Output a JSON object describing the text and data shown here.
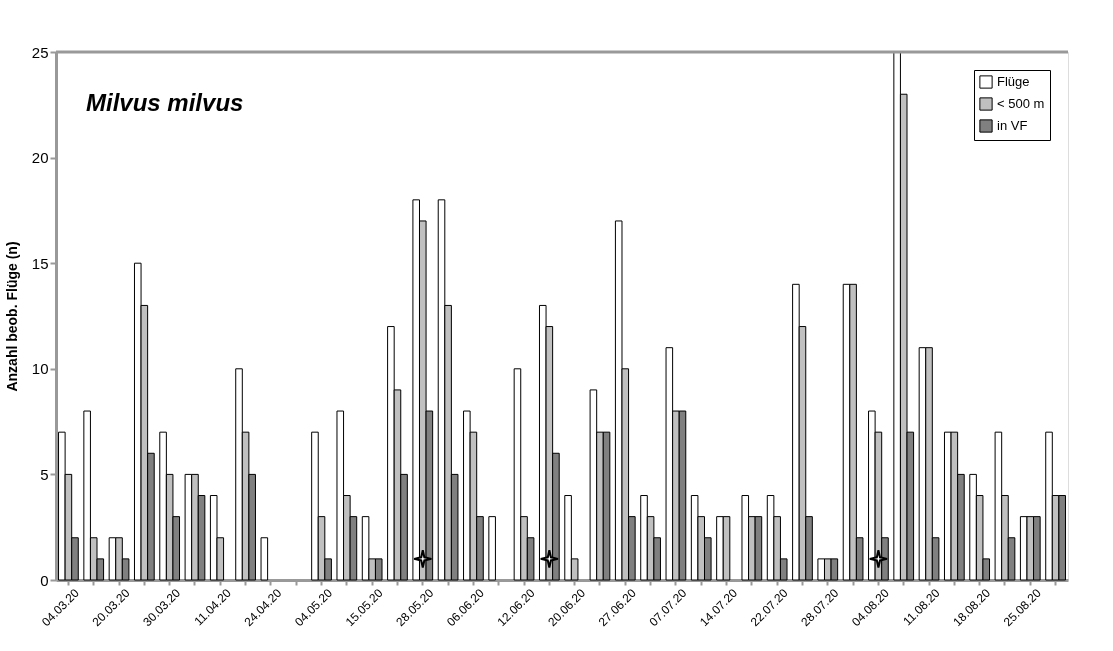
{
  "chart_data": {
    "type": "bar",
    "title": "Milvus milvus",
    "ylabel": "Anzahl beob. Flüge (n)",
    "categories": [
      "04.03.20",
      null,
      "20.03.20",
      null,
      "30.03.20",
      null,
      "11.04.20",
      null,
      "24.04.20",
      null,
      "04.05.20",
      null,
      "15.05.20",
      null,
      "28.05.20",
      null,
      "06.06.20",
      null,
      "12.06.20",
      null,
      "20.06.20",
      null,
      "27.06.20",
      null,
      "07.07.20",
      null,
      "14.07.20",
      null,
      "22.07.20",
      null,
      "28.07.20",
      null,
      "04.08.20",
      null,
      "11.08.20",
      null,
      "18.08.20",
      null,
      "25.08.20",
      null
    ],
    "series": [
      {
        "name": "Flüge",
        "color": "#ffffff",
        "values": [
          7,
          8,
          2,
          15,
          7,
          5,
          4,
          10,
          2,
          0,
          7,
          8,
          3,
          12,
          18,
          18,
          8,
          3,
          10,
          13,
          4,
          9,
          17,
          4,
          11,
          4,
          3,
          4,
          4,
          14,
          1,
          14,
          8,
          25,
          11,
          7,
          5,
          7,
          3,
          7
        ]
      },
      {
        "name": "< 500 m",
        "color": "#c0c0c0",
        "values": [
          5,
          2,
          2,
          13,
          5,
          5,
          2,
          7,
          0,
          0,
          3,
          4,
          1,
          9,
          17,
          13,
          7,
          0,
          3,
          12,
          1,
          7,
          10,
          3,
          8,
          3,
          3,
          3,
          3,
          12,
          1,
          14,
          7,
          23,
          11,
          7,
          4,
          4,
          3,
          4
        ]
      },
      {
        "name": "in VF",
        "color": "#808080",
        "values": [
          2,
          1,
          1,
          6,
          3,
          4,
          0,
          5,
          0,
          0,
          1,
          3,
          1,
          5,
          8,
          5,
          3,
          0,
          2,
          6,
          0,
          7,
          3,
          2,
          8,
          2,
          0,
          3,
          1,
          3,
          1,
          2,
          2,
          7,
          2,
          5,
          1,
          2,
          3,
          4
        ]
      },
      {
        "type": "scatter",
        "color": "#ffffff",
        "marker": "star",
        "values": [
          null,
          null,
          null,
          null,
          null,
          null,
          null,
          null,
          null,
          null,
          null,
          null,
          null,
          null,
          1,
          null,
          null,
          null,
          null,
          1,
          null,
          null,
          null,
          null,
          null,
          null,
          null,
          null,
          null,
          null,
          null,
          null,
          1,
          null,
          null,
          null,
          null,
          null,
          null,
          null
        ]
      }
    ],
    "ylim": [
      0,
      25
    ],
    "yticks": [
      0,
      5,
      10,
      15,
      20,
      25
    ],
    "grid": false,
    "legend": "top right"
  }
}
